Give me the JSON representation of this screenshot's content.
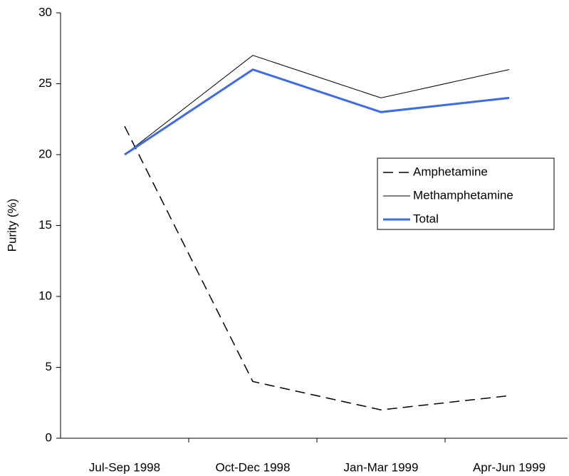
{
  "chart_data": {
    "type": "line",
    "ylabel": "Purity (%)",
    "categories": [
      "Jul-Sep 1998",
      "Oct-Dec 1998",
      "Jan-Mar 1999",
      "Apr-Jun 1999"
    ],
    "series": [
      {
        "name": "Amphetamine",
        "color": "#000000",
        "style": "dashed",
        "linewidth": 1.5,
        "values": [
          22,
          4,
          2,
          3
        ]
      },
      {
        "name": "Methamphetamine",
        "color": "#000000",
        "style": "solid",
        "linewidth": 1,
        "values": [
          20,
          27,
          24,
          26
        ]
      },
      {
        "name": "Total",
        "color": "#3d6be6",
        "style": "solid",
        "linewidth": 3,
        "values": [
          20,
          26,
          23,
          24
        ]
      }
    ],
    "ylim": [
      0,
      30
    ],
    "yticks": [
      0,
      5,
      10,
      15,
      20,
      25,
      30
    ]
  }
}
